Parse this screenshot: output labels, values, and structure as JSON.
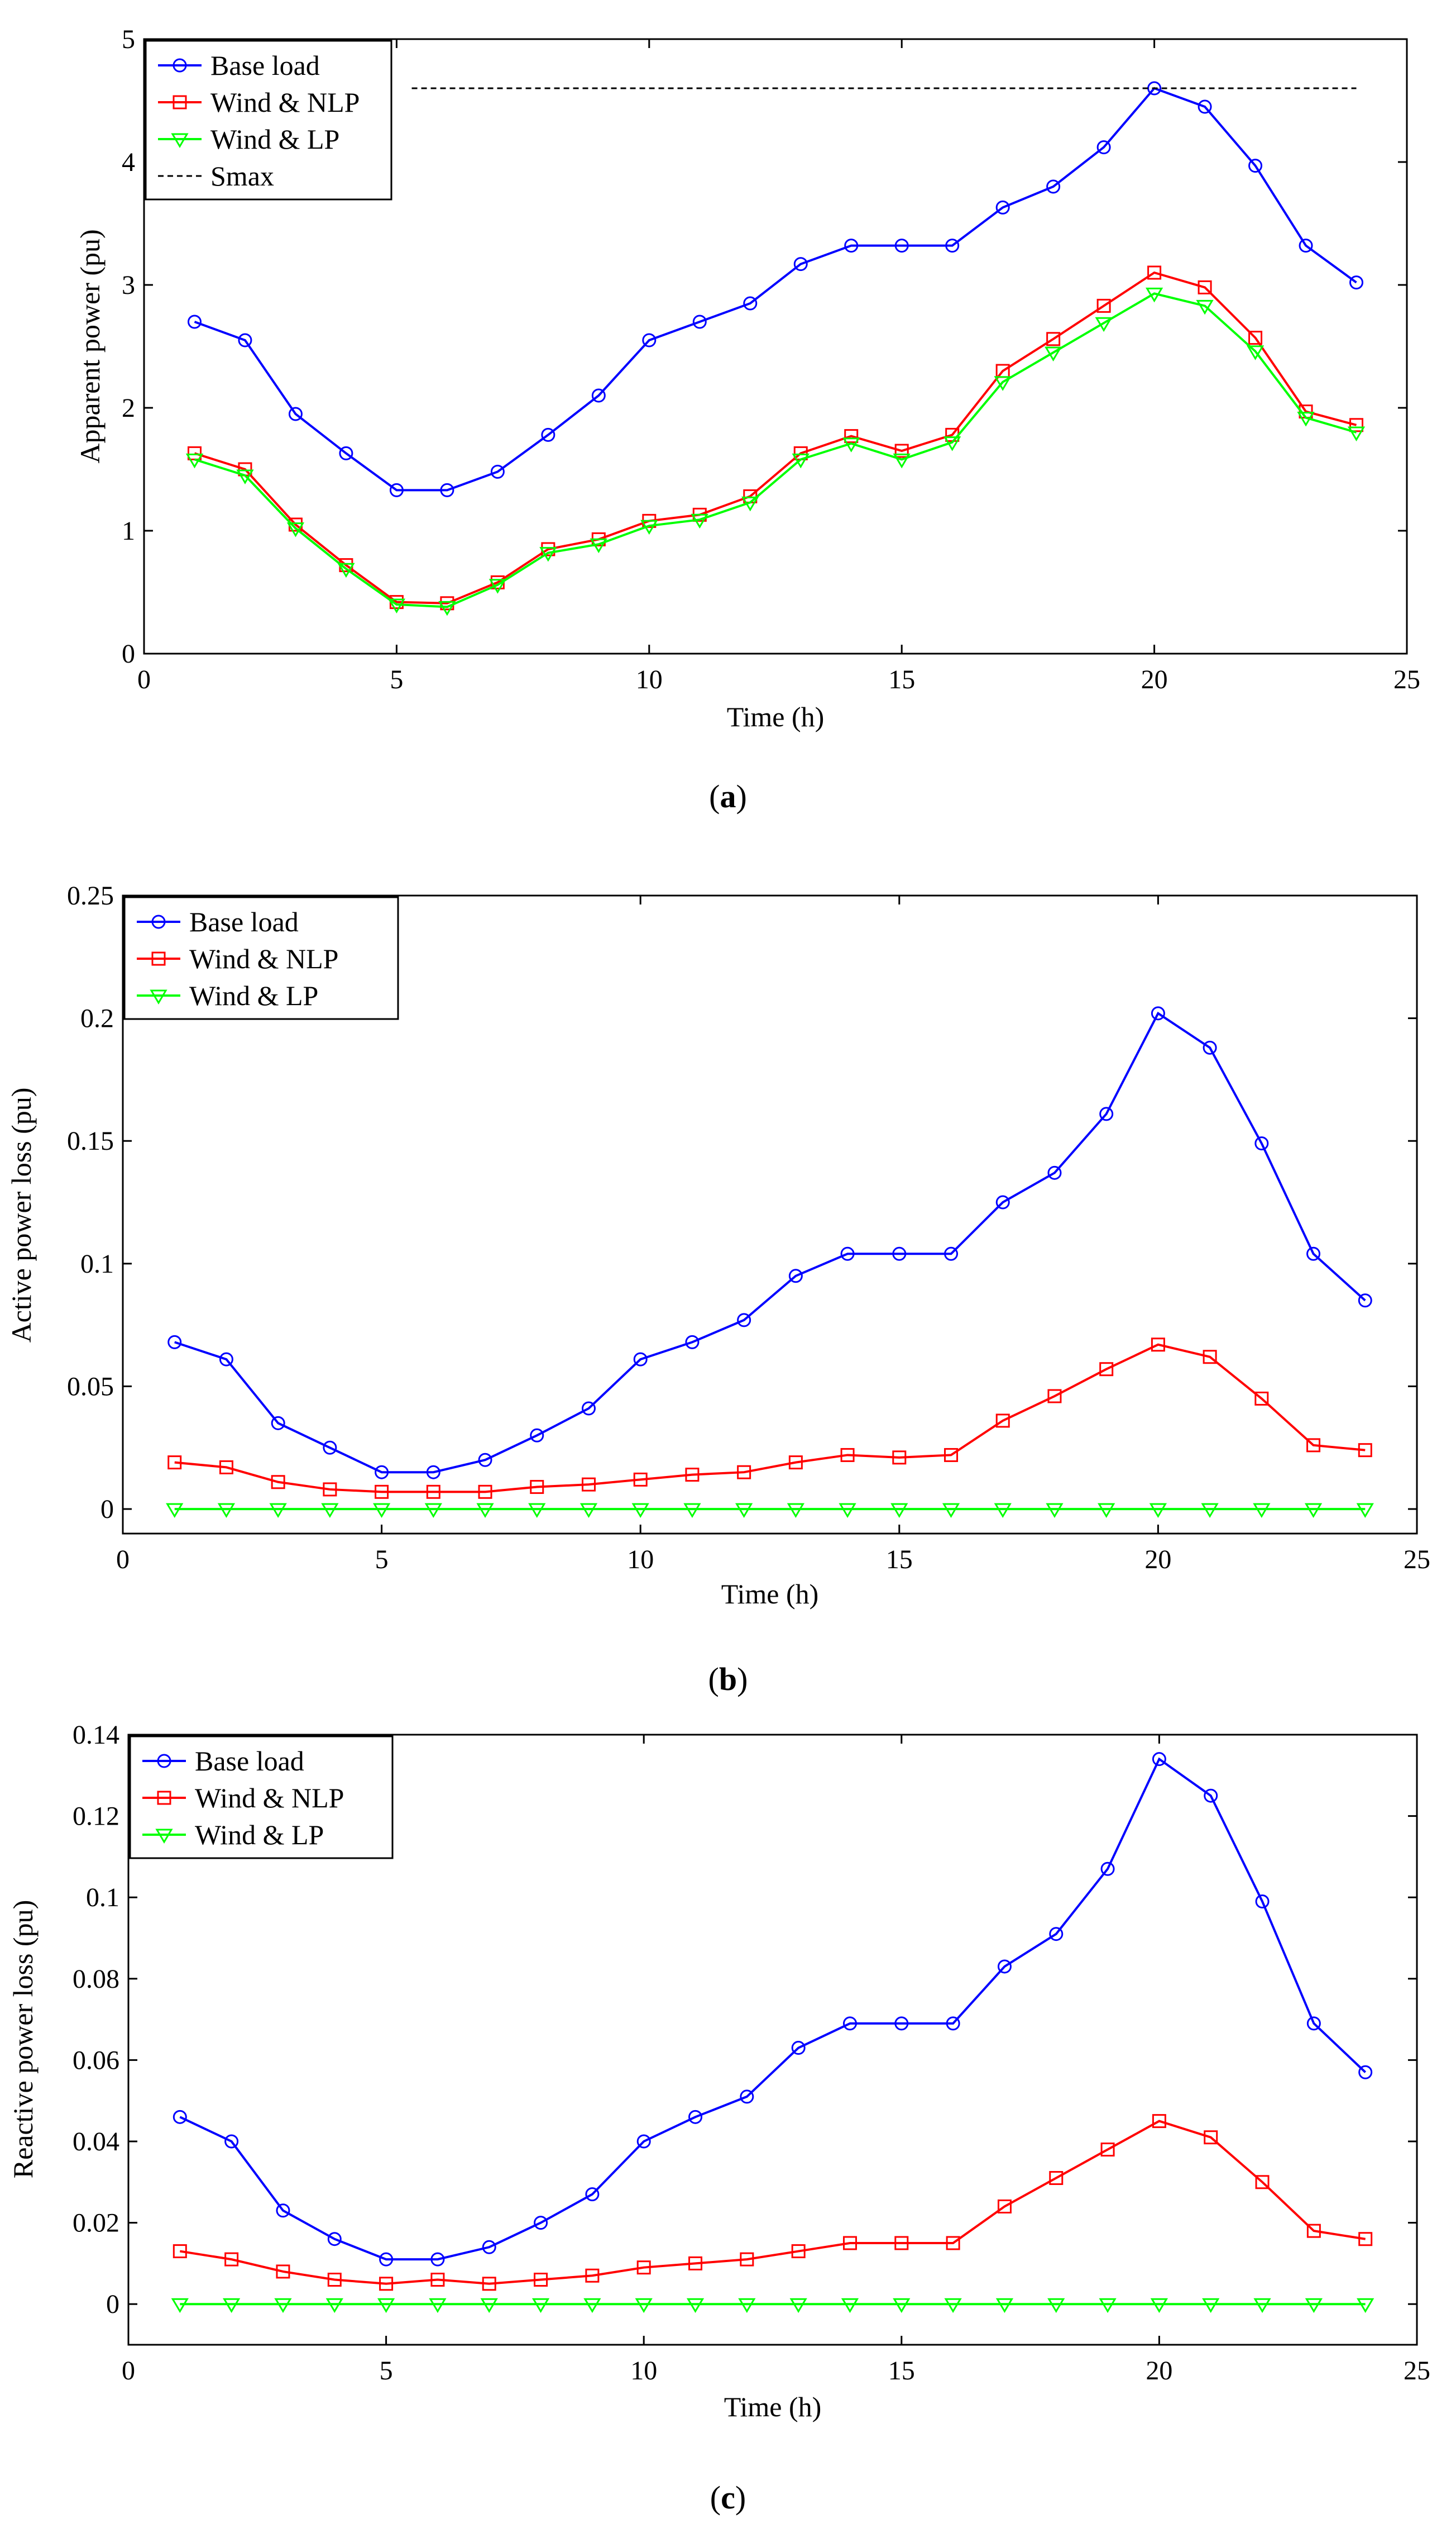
{
  "colors": {
    "base_load": "#0000ff",
    "wind_nlp": "#ff0000",
    "wind_lp": "#00ff00",
    "smax": "#000000"
  },
  "chart_data": [
    {
      "id": "a",
      "type": "line",
      "caption_open": "(",
      "caption_letter": "a",
      "caption_close": ")",
      "xlabel": "Time (h)",
      "ylabel": "Apparent power (pu)",
      "xlim": [
        0,
        25
      ],
      "ylim": [
        0,
        5
      ],
      "xticks": [
        0,
        5,
        10,
        15,
        20,
        25
      ],
      "yticks": [
        0,
        1,
        2,
        3,
        4,
        5
      ],
      "ytick_labels": [
        "0",
        "1",
        "2",
        "3",
        "4",
        "5"
      ],
      "legend_position": "top-left",
      "x": [
        1,
        2,
        3,
        4,
        5,
        6,
        7,
        8,
        9,
        10,
        11,
        12,
        13,
        14,
        15,
        16,
        17,
        18,
        19,
        20,
        21,
        22,
        23,
        24
      ],
      "series": [
        {
          "name": "Base load",
          "color_key": "base_load",
          "marker": "circle",
          "values": [
            2.7,
            2.55,
            1.95,
            1.63,
            1.33,
            1.33,
            1.48,
            1.78,
            2.1,
            2.55,
            2.7,
            2.85,
            3.17,
            3.32,
            3.32,
            3.32,
            3.63,
            3.8,
            4.12,
            4.6,
            4.45,
            3.97,
            3.32,
            3.02
          ]
        },
        {
          "name": "Wind & NLP",
          "color_key": "wind_nlp",
          "marker": "square",
          "values": [
            1.63,
            1.5,
            1.05,
            0.72,
            0.42,
            0.41,
            0.58,
            0.85,
            0.93,
            1.08,
            1.13,
            1.28,
            1.63,
            1.77,
            1.65,
            1.78,
            2.3,
            2.56,
            2.83,
            3.1,
            2.98,
            2.57,
            1.97,
            1.86
          ]
        },
        {
          "name": "Wind & LP",
          "color_key": "wind_lp",
          "marker": "triangle-down",
          "values": [
            1.58,
            1.45,
            1.02,
            0.69,
            0.4,
            0.38,
            0.56,
            0.82,
            0.89,
            1.04,
            1.09,
            1.23,
            1.58,
            1.71,
            1.58,
            1.72,
            2.21,
            2.45,
            2.69,
            2.93,
            2.83,
            2.46,
            1.92,
            1.8
          ]
        },
        {
          "name": "Smax",
          "color_key": "smax",
          "marker": "none",
          "dashed": true,
          "x": [
            5.3,
            24
          ],
          "values": [
            4.6,
            4.6
          ]
        }
      ]
    },
    {
      "id": "b",
      "type": "line",
      "caption_open": "(",
      "caption_letter": "b",
      "caption_close": ")",
      "xlabel": "Time (h)",
      "ylabel": "Active power loss (pu)",
      "xlim": [
        0,
        25
      ],
      "ylim": [
        -0.01,
        0.25
      ],
      "xticks": [
        0,
        5,
        10,
        15,
        20,
        25
      ],
      "yticks": [
        0,
        0.05,
        0.1,
        0.15,
        0.2,
        0.25
      ],
      "ytick_labels": [
        "0",
        "0.05",
        "0.1",
        "0.15",
        "0.2",
        "0.25"
      ],
      "legend_position": "top-left",
      "x": [
        1,
        2,
        3,
        4,
        5,
        6,
        7,
        8,
        9,
        10,
        11,
        12,
        13,
        14,
        15,
        16,
        17,
        18,
        19,
        20,
        21,
        22,
        23,
        24
      ],
      "series": [
        {
          "name": "Base load",
          "color_key": "base_load",
          "marker": "circle",
          "values": [
            0.068,
            0.061,
            0.035,
            0.025,
            0.015,
            0.015,
            0.02,
            0.03,
            0.041,
            0.061,
            0.068,
            0.077,
            0.095,
            0.104,
            0.104,
            0.104,
            0.125,
            0.137,
            0.161,
            0.202,
            0.188,
            0.149,
            0.104,
            0.085
          ]
        },
        {
          "name": "Wind & NLP",
          "color_key": "wind_nlp",
          "marker": "square",
          "values": [
            0.019,
            0.017,
            0.011,
            0.008,
            0.007,
            0.007,
            0.007,
            0.009,
            0.01,
            0.012,
            0.014,
            0.015,
            0.019,
            0.022,
            0.021,
            0.022,
            0.036,
            0.046,
            0.057,
            0.067,
            0.062,
            0.045,
            0.026,
            0.024
          ]
        },
        {
          "name": "Wind & LP",
          "color_key": "wind_lp",
          "marker": "triangle-down",
          "values": [
            0,
            0,
            0,
            0,
            0,
            0,
            0,
            0,
            0,
            0,
            0,
            0,
            0,
            0,
            0,
            0,
            0,
            0,
            0,
            0,
            0,
            0,
            0,
            0
          ]
        }
      ]
    },
    {
      "id": "c",
      "type": "line",
      "caption_open": "(",
      "caption_letter": "c",
      "caption_close": ")",
      "xlabel": "Time (h)",
      "ylabel": "Reactive power loss (pu)",
      "xlim": [
        0,
        25
      ],
      "ylim": [
        -0.01,
        0.14
      ],
      "xticks": [
        0,
        5,
        10,
        15,
        20,
        25
      ],
      "yticks": [
        0,
        0.02,
        0.04,
        0.06,
        0.08,
        0.1,
        0.12,
        0.14
      ],
      "ytick_labels": [
        "0",
        "0.02",
        "0.04",
        "0.06",
        "0.08",
        "0.1",
        "0.12",
        "0.14"
      ],
      "legend_position": "top-left",
      "x": [
        1,
        2,
        3,
        4,
        5,
        6,
        7,
        8,
        9,
        10,
        11,
        12,
        13,
        14,
        15,
        16,
        17,
        18,
        19,
        20,
        21,
        22,
        23,
        24
      ],
      "series": [
        {
          "name": "Base load",
          "color_key": "base_load",
          "marker": "circle",
          "values": [
            0.046,
            0.04,
            0.023,
            0.016,
            0.011,
            0.011,
            0.014,
            0.02,
            0.027,
            0.04,
            0.046,
            0.051,
            0.063,
            0.069,
            0.069,
            0.069,
            0.083,
            0.091,
            0.107,
            0.134,
            0.125,
            0.099,
            0.069,
            0.057
          ]
        },
        {
          "name": "Wind & NLP",
          "color_key": "wind_nlp",
          "marker": "square",
          "values": [
            0.013,
            0.011,
            0.008,
            0.006,
            0.005,
            0.006,
            0.005,
            0.006,
            0.007,
            0.009,
            0.01,
            0.011,
            0.013,
            0.015,
            0.015,
            0.015,
            0.024,
            0.031,
            0.038,
            0.045,
            0.041,
            0.03,
            0.018,
            0.016
          ]
        },
        {
          "name": "Wind & LP",
          "color_key": "wind_lp",
          "marker": "triangle-down",
          "values": [
            0,
            0,
            0,
            0,
            0,
            0,
            0,
            0,
            0,
            0,
            0,
            0,
            0,
            0,
            0,
            0,
            0,
            0,
            0,
            0,
            0,
            0,
            0,
            0
          ]
        }
      ]
    }
  ]
}
